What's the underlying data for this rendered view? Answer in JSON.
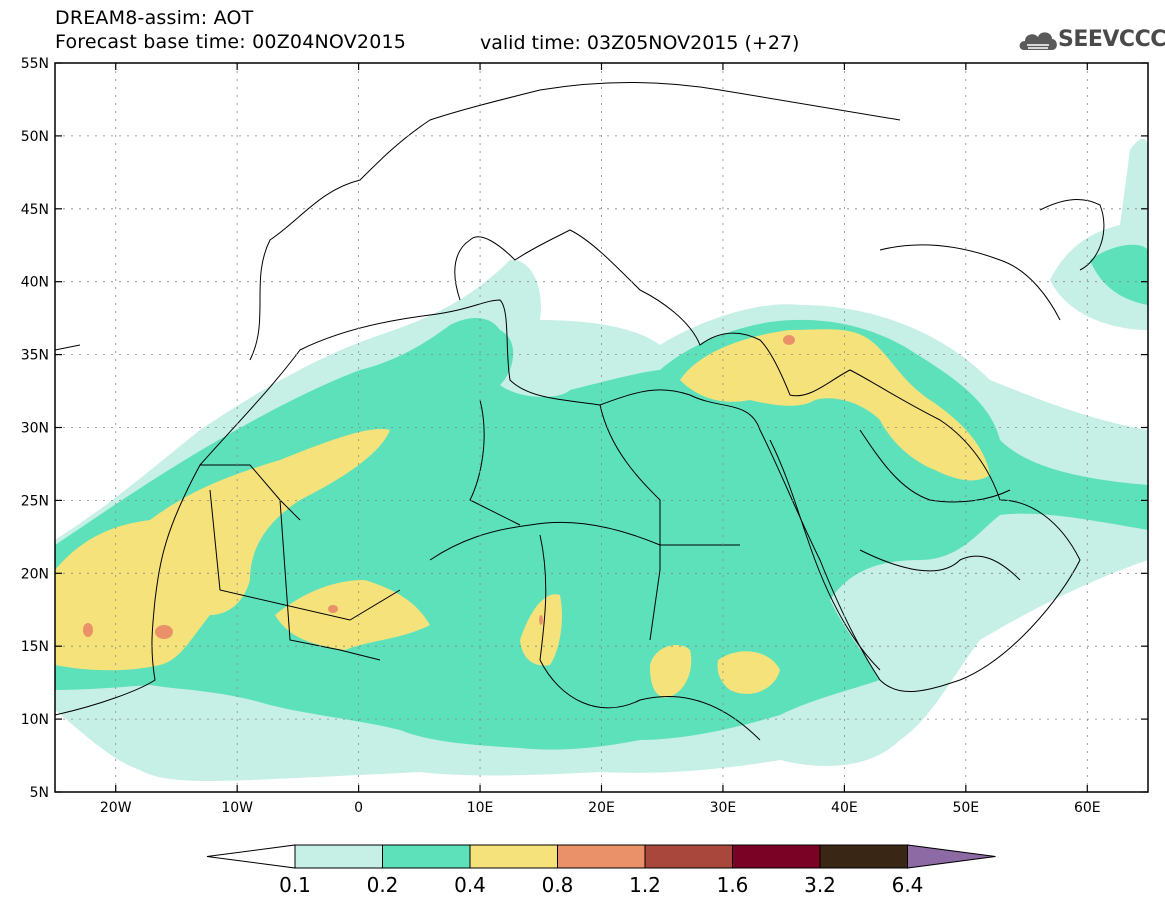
{
  "header": {
    "title": "DREAM8-assim: AOT",
    "base_time": "Forecast base time: 00Z04NOV2015",
    "valid_time": "valid time: 03Z05NOV2015 (+27)",
    "logo_text": "SEEVCCC"
  },
  "map": {
    "lon_range": [
      -25,
      65
    ],
    "lat_range": [
      5,
      55
    ],
    "lon_ticks": [
      {
        "value": -20,
        "label": "20W"
      },
      {
        "value": -10,
        "label": "10W"
      },
      {
        "value": 0,
        "label": "0"
      },
      {
        "value": 10,
        "label": "10E"
      },
      {
        "value": 20,
        "label": "20E"
      },
      {
        "value": 30,
        "label": "30E"
      },
      {
        "value": 40,
        "label": "40E"
      },
      {
        "value": 50,
        "label": "50E"
      },
      {
        "value": 60,
        "label": "60E"
      }
    ],
    "lat_ticks": [
      {
        "value": 5,
        "label": "5N"
      },
      {
        "value": 10,
        "label": "10N"
      },
      {
        "value": 15,
        "label": "15N"
      },
      {
        "value": 20,
        "label": "20N"
      },
      {
        "value": 25,
        "label": "25N"
      },
      {
        "value": 30,
        "label": "30N"
      },
      {
        "value": 35,
        "label": "35N"
      },
      {
        "value": 40,
        "label": "40N"
      },
      {
        "value": 45,
        "label": "45N"
      },
      {
        "value": 50,
        "label": "50N"
      },
      {
        "value": 55,
        "label": "55N"
      }
    ]
  },
  "colorbar": {
    "levels": [
      "0.1",
      "0.2",
      "0.4",
      "0.8",
      "1.2",
      "1.6",
      "3.2",
      "6.4"
    ],
    "colors": [
      "#ffffff",
      "#c6efe6",
      "#5ce1bb",
      "#f5e27a",
      "#ea9169",
      "#a9473d",
      "#7a0224",
      "#3a2615",
      "#8e6aa4"
    ]
  }
}
